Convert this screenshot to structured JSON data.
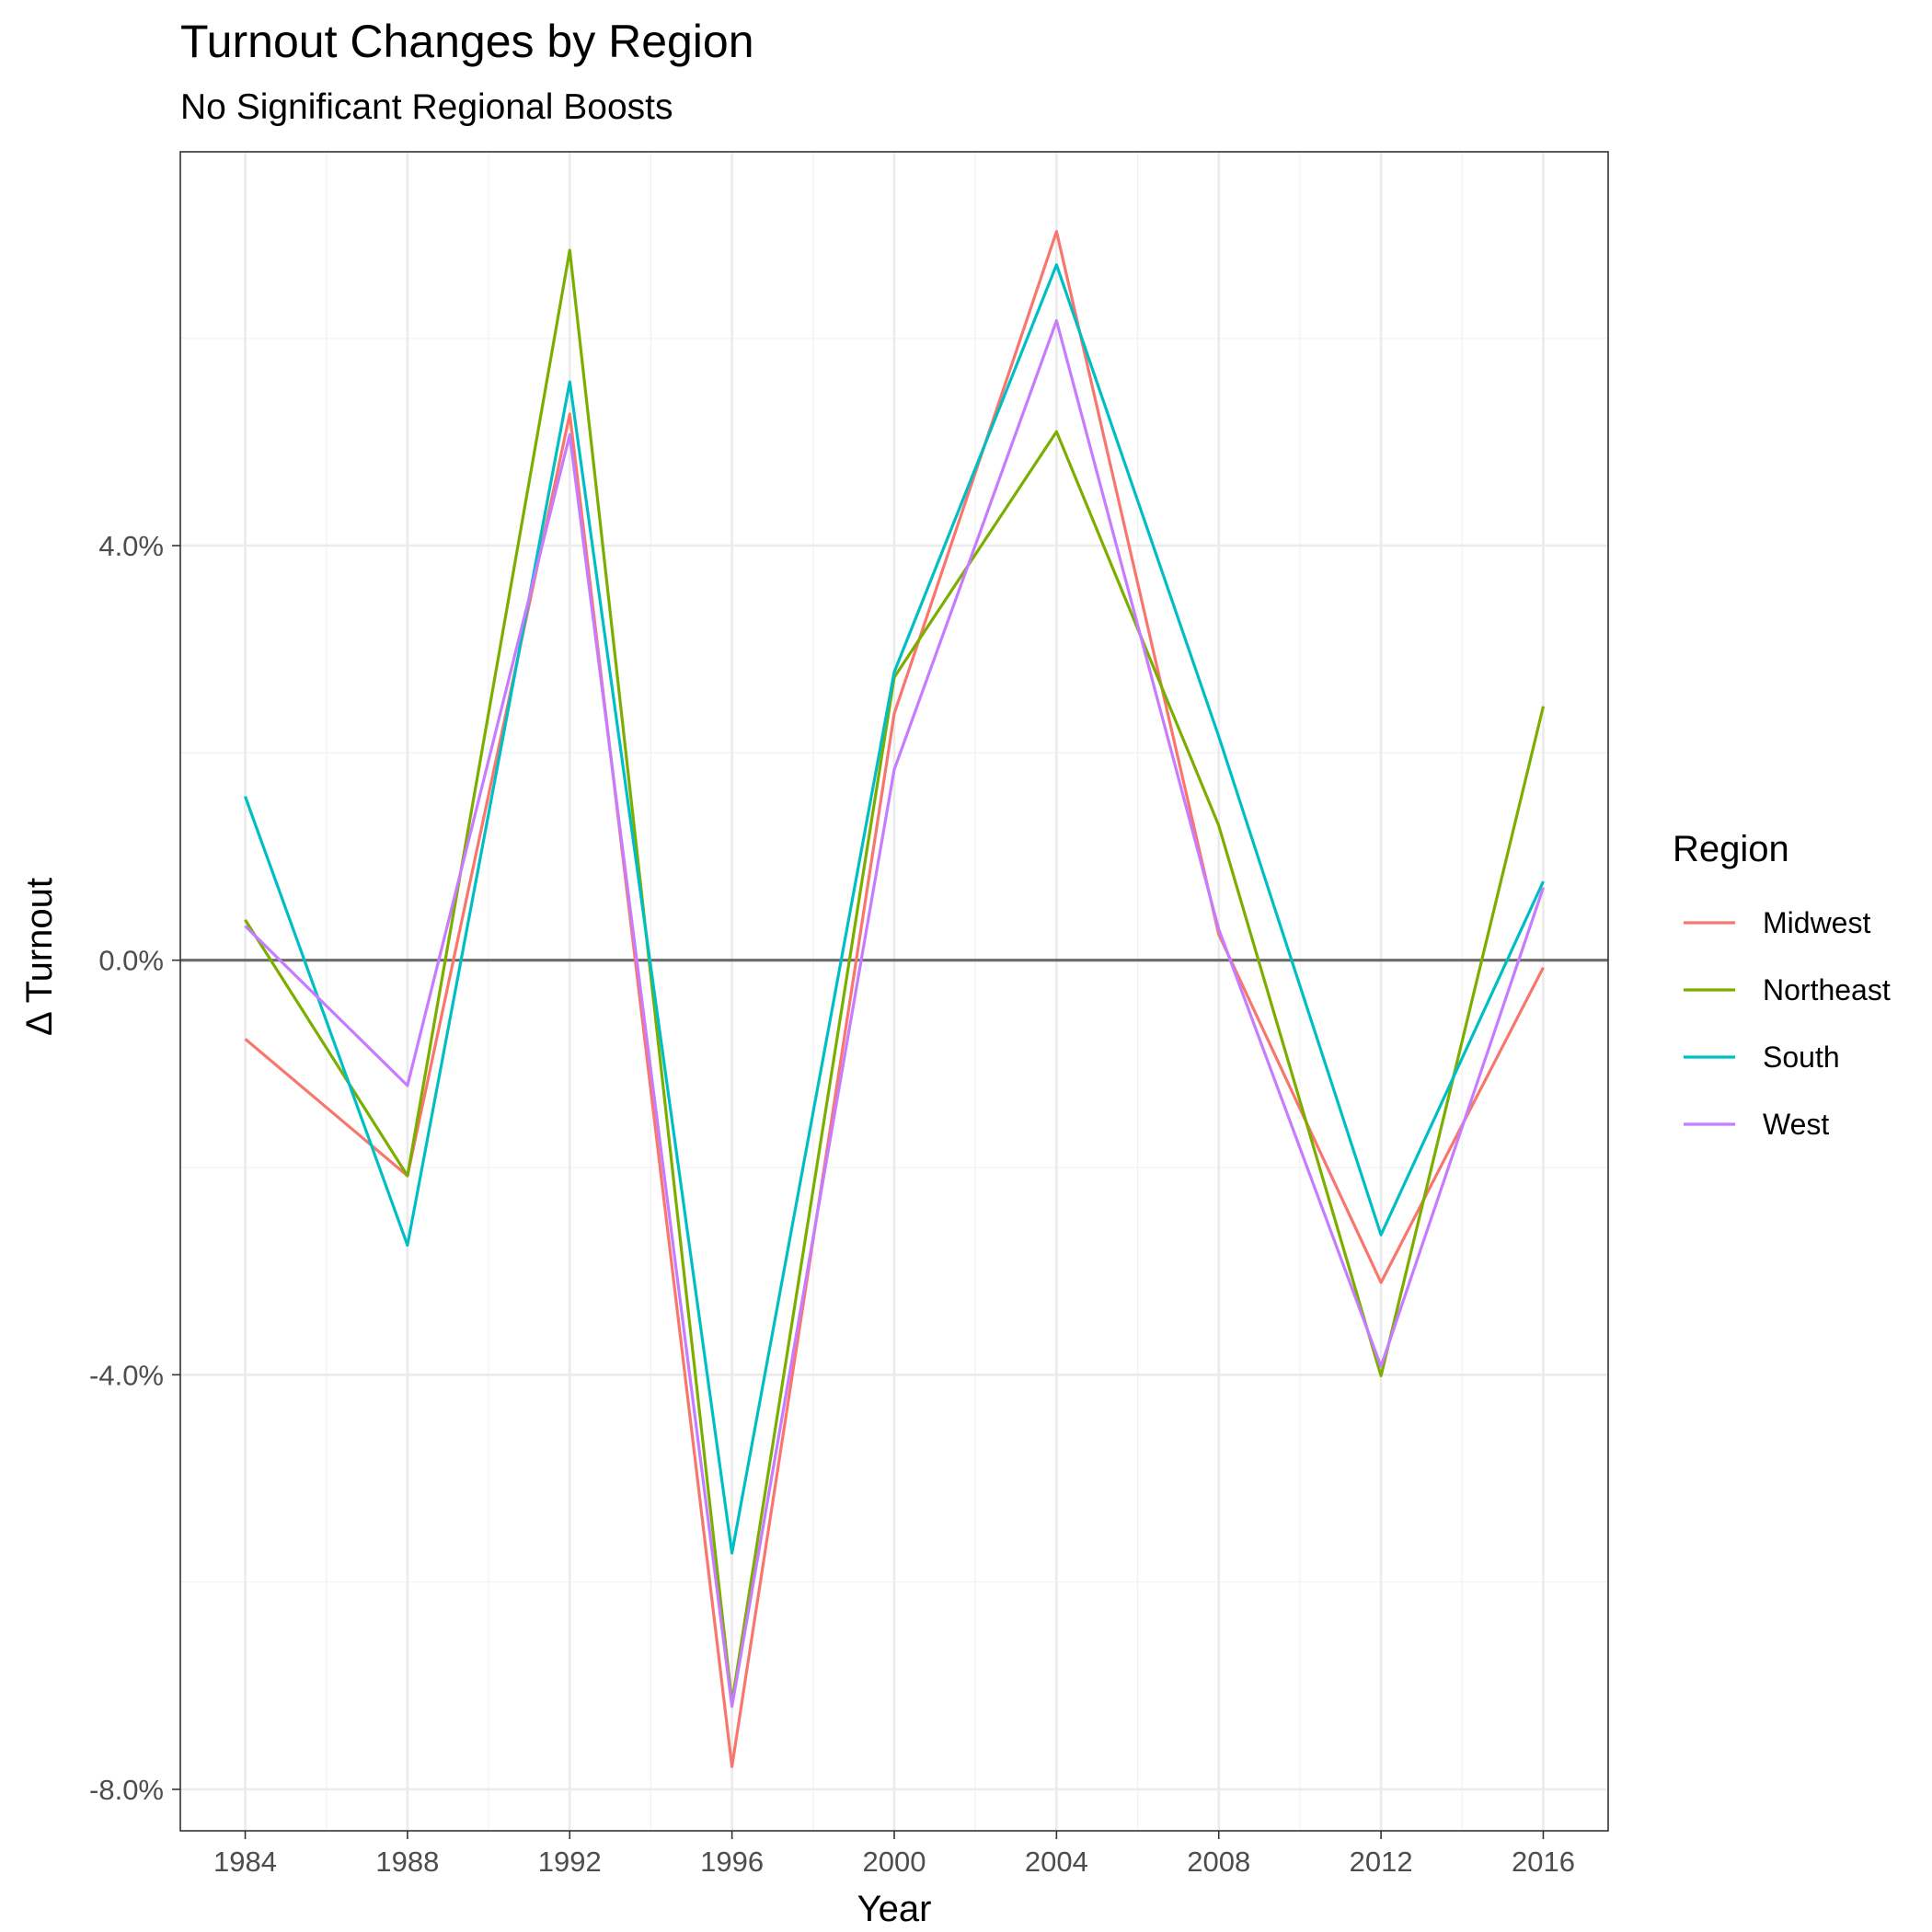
{
  "chart_data": {
    "type": "line",
    "title": "Turnout Changes by Region",
    "subtitle": "No Significant Regional Boosts",
    "xlabel": "Year",
    "ylabel": "Δ Turnout",
    "x": [
      1984,
      1988,
      1992,
      1996,
      2000,
      2004,
      2008,
      2012,
      2016
    ],
    "x_ticks": [
      "1984",
      "1988",
      "1992",
      "1996",
      "2000",
      "2004",
      "2008",
      "2012",
      "2016"
    ],
    "y_ticks": [
      {
        "value": -8,
        "label": "-8.0%"
      },
      {
        "value": -4,
        "label": "-4.0%"
      },
      {
        "value": 0,
        "label": "0.0%"
      },
      {
        "value": 4,
        "label": "4.0%"
      }
    ],
    "xlim": [
      1982.4,
      2017.6
    ],
    "ylim": [
      -8.4,
      7.8
    ],
    "reference_line": 0,
    "grid": true,
    "legend": {
      "title": "Region",
      "position": "right"
    },
    "series": [
      {
        "name": "Midwest",
        "color": "#F8766D",
        "values": [
          -0.76,
          -2.08,
          5.27,
          -7.78,
          2.38,
          7.03,
          0.25,
          -3.11,
          -0.07
        ]
      },
      {
        "name": "Northeast",
        "color": "#7CAE00",
        "values": [
          0.39,
          -2.08,
          6.85,
          -7.16,
          2.73,
          5.1,
          1.3,
          -4.01,
          2.45
        ]
      },
      {
        "name": "South",
        "color": "#00BFC4",
        "values": [
          1.58,
          -2.75,
          5.58,
          -5.72,
          2.78,
          6.71,
          2.16,
          -2.65,
          0.76
        ]
      },
      {
        "name": "West",
        "color": "#C77CFF",
        "values": [
          0.33,
          -1.21,
          5.07,
          -7.2,
          1.84,
          6.17,
          0.3,
          -3.92,
          0.7
        ]
      }
    ]
  }
}
